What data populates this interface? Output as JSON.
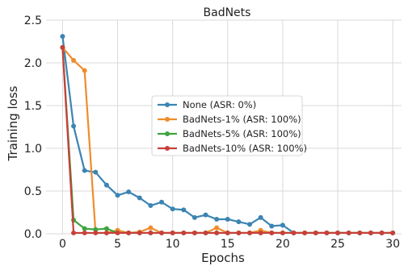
{
  "chart_data": {
    "type": "line",
    "title": "BadNets",
    "xlabel": "Epochs",
    "ylabel": "Training loss",
    "xlim": [
      -1.5,
      30.8
    ],
    "ylim": [
      0,
      2.5
    ],
    "xticks": [
      0,
      5,
      10,
      15,
      20,
      25,
      30
    ],
    "yticks": [
      0.0,
      0.5,
      1.0,
      1.5,
      2.0,
      2.5
    ],
    "grid": true,
    "legend_position": "center",
    "x": [
      0,
      1,
      2,
      3,
      4,
      5,
      6,
      7,
      8,
      9,
      10,
      11,
      12,
      13,
      14,
      15,
      16,
      17,
      18,
      19,
      20,
      21,
      22,
      23,
      24,
      25,
      26,
      27,
      28,
      29,
      30
    ],
    "series": [
      {
        "name": "None (ASR: 0%)",
        "color": "#3b84b4",
        "values": [
          2.31,
          1.26,
          0.74,
          0.72,
          0.57,
          0.45,
          0.49,
          0.42,
          0.33,
          0.37,
          0.29,
          0.28,
          0.19,
          0.22,
          0.17,
          0.17,
          0.14,
          0.11,
          0.19,
          0.09,
          0.1,
          0.01,
          0.01,
          0.01,
          0.01,
          0.01,
          0.01,
          0.01,
          0.01,
          0.01,
          0.01
        ]
      },
      {
        "name": "BadNets-1% (ASR: 100%)",
        "color": "#f08c2c",
        "values": [
          2.18,
          2.03,
          1.91,
          0.01,
          0.01,
          0.04,
          0.01,
          0.02,
          0.07,
          0.01,
          0.01,
          0.01,
          0.01,
          0.01,
          0.07,
          0.01,
          0.01,
          0.01,
          0.04,
          0.01,
          0.01,
          0.01,
          0.01,
          0.01,
          0.01,
          0.01,
          0.01,
          0.01,
          0.01,
          0.01,
          0.01
        ]
      },
      {
        "name": "BadNets-5% (ASR: 100%)",
        "color": "#3fa43f",
        "values": [
          2.18,
          0.16,
          0.06,
          0.05,
          0.06,
          0.01,
          0.01,
          0.01,
          0.01,
          0.01,
          0.01,
          0.01,
          0.01,
          0.01,
          0.01,
          0.01,
          0.01,
          0.01,
          0.01,
          0.01,
          0.01,
          0.01,
          0.01,
          0.01,
          0.01,
          0.01,
          0.01,
          0.01,
          0.01,
          0.01,
          0.01
        ]
      },
      {
        "name": "BadNets-10% (ASR: 100%)",
        "color": "#c8403a",
        "values": [
          2.18,
          0.01,
          0.01,
          0.01,
          0.01,
          0.01,
          0.01,
          0.01,
          0.01,
          0.01,
          0.01,
          0.01,
          0.01,
          0.01,
          0.01,
          0.01,
          0.01,
          0.01,
          0.01,
          0.01,
          0.01,
          0.01,
          0.01,
          0.01,
          0.01,
          0.01,
          0.01,
          0.01,
          0.01,
          0.01,
          0.01
        ]
      }
    ]
  }
}
